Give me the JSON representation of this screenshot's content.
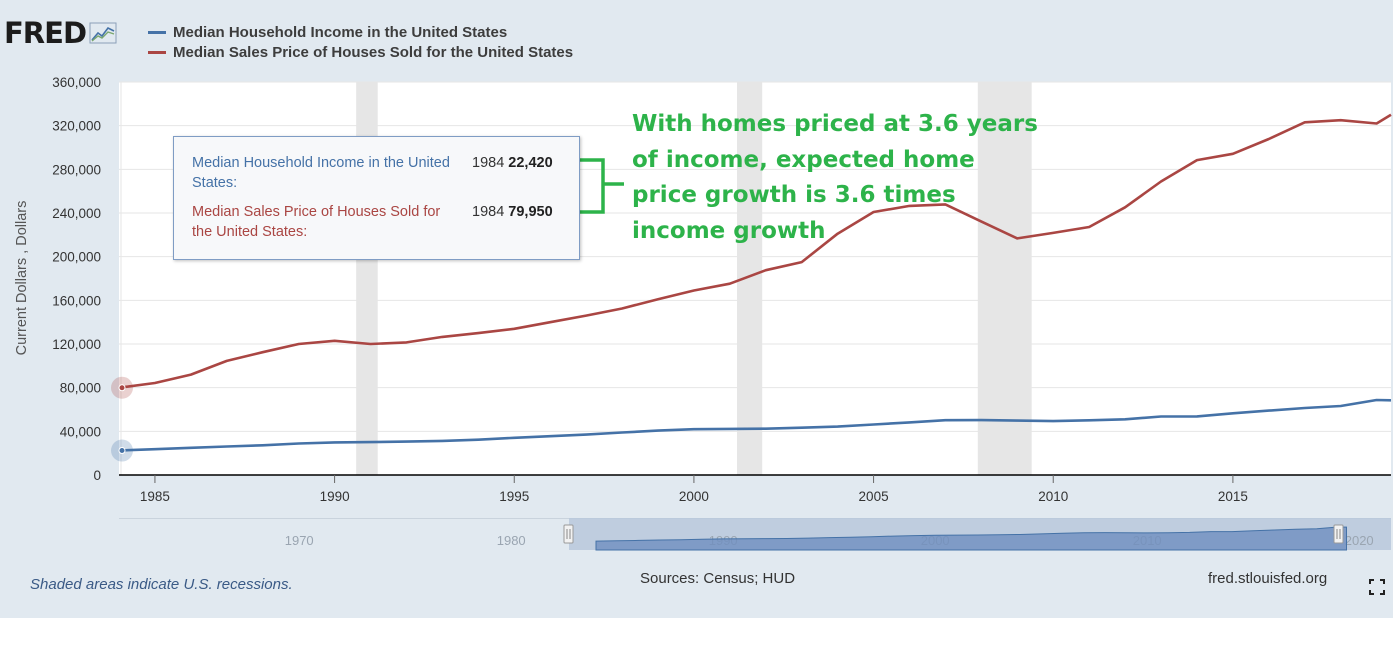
{
  "branding": {
    "logo_text": "FRED",
    "logo_icon": "chart-trend-icon"
  },
  "legend": [
    {
      "name": "Median Household Income in the United States",
      "color": "#4572a7"
    },
    {
      "name": "Median Sales Price of Houses Sold for the United States",
      "color": "#aa4643"
    }
  ],
  "chart_data": {
    "type": "line",
    "title": "",
    "xlabel": "",
    "ylabel": "Current Dollars , Dollars",
    "xlim": [
      1984,
      2019.4
    ],
    "ylim": [
      0,
      360000
    ],
    "yticks": [
      0,
      40000,
      80000,
      120000,
      160000,
      200000,
      240000,
      280000,
      320000,
      360000
    ],
    "ytick_labels": [
      "0",
      "40,000",
      "80,000",
      "120,000",
      "160,000",
      "200,000",
      "240,000",
      "280,000",
      "320,000",
      "360,000"
    ],
    "xticks": [
      1985,
      1990,
      1995,
      2000,
      2005,
      2010,
      2015
    ],
    "xtick_labels": [
      "1985",
      "1990",
      "1995",
      "2000",
      "2005",
      "2010",
      "2015"
    ],
    "grid": true,
    "legend_position": "top-left",
    "recessions": [
      [
        1990.6,
        1991.2
      ],
      [
        2001.2,
        2001.9
      ],
      [
        2007.9,
        2009.4
      ]
    ],
    "series": [
      {
        "name": "Median Household Income in the United States",
        "color": "#4572a7",
        "x": [
          1984,
          1985,
          1986,
          1987,
          1988,
          1989,
          1990,
          1991,
          1992,
          1993,
          1994,
          1995,
          1996,
          1997,
          1998,
          1999,
          2000,
          2001,
          2002,
          2003,
          2004,
          2005,
          2006,
          2007,
          2008,
          2009,
          2010,
          2011,
          2012,
          2013,
          2014,
          2015,
          2016,
          2017,
          2018,
          2019,
          2019.4
        ],
        "y": [
          22420,
          23600,
          24900,
          26100,
          27200,
          28900,
          29900,
          30100,
          30600,
          31200,
          32300,
          34100,
          35500,
          37000,
          38900,
          40700,
          41990,
          42200,
          42400,
          43300,
          44300,
          46300,
          48200,
          50200,
          50300,
          49800,
          49400,
          50100,
          51000,
          53600,
          53700,
          56500,
          59000,
          61400,
          63200,
          68700,
          68400
        ]
      },
      {
        "name": "Median Sales Price of Houses Sold for the United States",
        "color": "#aa4643",
        "x": [
          1984,
          1985,
          1986,
          1987,
          1988,
          1989,
          1990,
          1991,
          1992,
          1993,
          1994,
          1995,
          1996,
          1997,
          1998,
          1999,
          2000,
          2001,
          2002,
          2003,
          2004,
          2005,
          2006,
          2007,
          2008,
          2009,
          2010,
          2011,
          2012,
          2013,
          2014,
          2015,
          2016,
          2017,
          2018,
          2019,
          2019.4
        ],
        "y": [
          79950,
          84300,
          92000,
          104500,
          112500,
          120000,
          122900,
          120000,
          121500,
          126500,
          130000,
          133900,
          140000,
          146000,
          152500,
          161000,
          169000,
          175200,
          187600,
          195000,
          221000,
          240900,
          246500,
          247900,
          232100,
          216700,
          221800,
          227200,
          245200,
          268900,
          288500,
          294200,
          307800,
          323100,
          325000,
          322000,
          330000
        ]
      }
    ]
  },
  "navigator": {
    "xtick_labels": [
      "1970",
      "1980",
      "1990",
      "2000",
      "2010",
      "2020"
    ],
    "handle_icon": "range-handle-icon"
  },
  "tooltip": {
    "rows": [
      {
        "label": "Median Household Income in the United States:",
        "date": "1984",
        "value": "22,420",
        "color": "#4572a7"
      },
      {
        "label": "Median Sales Price of Houses Sold for the United States:",
        "date": "1984",
        "value": "79,950",
        "color": "#aa4643"
      }
    ]
  },
  "annotation": {
    "lines": [
      "With homes priced at 3.6 years",
      "of income, expected home",
      "price growth is 3.6 times",
      "income growth"
    ],
    "color": "#2db34a"
  },
  "footer": {
    "recession_note": "Shaded areas indicate U.S. recessions.",
    "sources": "Sources: Census; HUD",
    "site": "fred.stlouisfed.org",
    "fullscreen_icon": "fullscreen-icon"
  }
}
